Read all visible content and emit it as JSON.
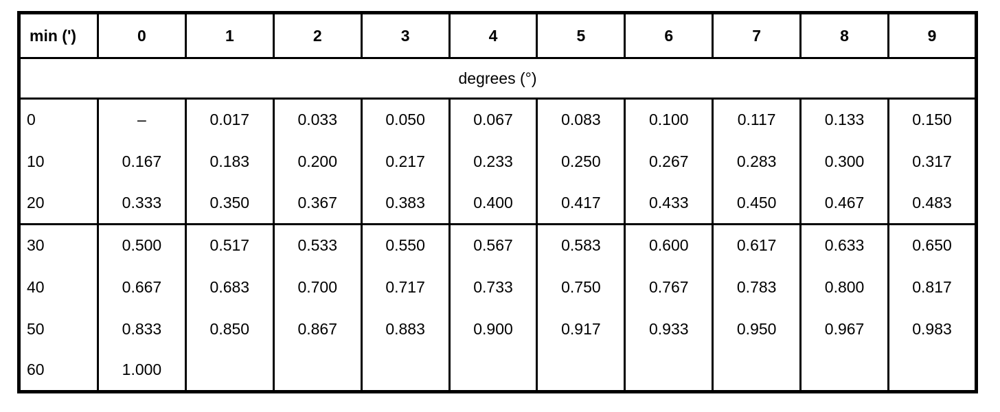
{
  "chart_data": {
    "type": "table",
    "corner_header": "min (')",
    "column_headers": [
      "0",
      "1",
      "2",
      "3",
      "4",
      "5",
      "6",
      "7",
      "8",
      "9"
    ],
    "span_header": "degrees (°)",
    "rows": [
      {
        "label": "0",
        "values": [
          "–",
          "0.017",
          "0.033",
          "0.050",
          "0.067",
          "0.083",
          "0.100",
          "0.117",
          "0.133",
          "0.150"
        ]
      },
      {
        "label": "10",
        "values": [
          "0.167",
          "0.183",
          "0.200",
          "0.217",
          "0.233",
          "0.250",
          "0.267",
          "0.283",
          "0.300",
          "0.317"
        ]
      },
      {
        "label": "20",
        "values": [
          "0.333",
          "0.350",
          "0.367",
          "0.383",
          "0.400",
          "0.417",
          "0.433",
          "0.450",
          "0.467",
          "0.483"
        ]
      },
      {
        "label": "30",
        "values": [
          "0.500",
          "0.517",
          "0.533",
          "0.550",
          "0.567",
          "0.583",
          "0.600",
          "0.617",
          "0.633",
          "0.650"
        ]
      },
      {
        "label": "40",
        "values": [
          "0.667",
          "0.683",
          "0.700",
          "0.717",
          "0.733",
          "0.750",
          "0.767",
          "0.783",
          "0.800",
          "0.817"
        ]
      },
      {
        "label": "50",
        "values": [
          "0.833",
          "0.850",
          "0.867",
          "0.883",
          "0.900",
          "0.917",
          "0.933",
          "0.950",
          "0.967",
          "0.983"
        ]
      },
      {
        "label": "60",
        "values": [
          "1.000",
          "",
          "",
          "",
          "",
          "",
          "",
          "",
          "",
          ""
        ]
      }
    ],
    "group_separator_after_row_index": 2,
    "layout": {
      "grid": "partial",
      "horizontal_rules": "after header row, after span-header row, after row 20, outer frame",
      "vertical_rules": "between all columns except within span-header row",
      "legend": "none"
    },
    "colors": {
      "border": "#000000",
      "background": "#ffffff",
      "text": "#000000"
    }
  }
}
